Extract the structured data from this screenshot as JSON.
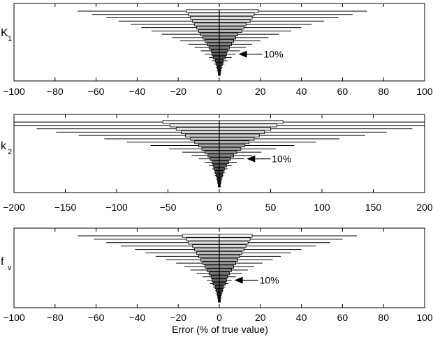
{
  "figure": {
    "xlabel": "Error (% of true value)"
  },
  "chart_data": [
    {
      "type": "bar",
      "panel": "K1",
      "ylabel_main": "K",
      "ylabel_sub": "1",
      "xlim": [
        -100,
        100
      ],
      "xticks": [
        -100,
        -80,
        -60,
        -40,
        -20,
        0,
        20,
        40,
        60,
        80,
        100
      ],
      "grid": false,
      "annotation": "10%",
      "annotation_level_index": 13,
      "levels": [
        {
          "box": [
            -16,
            19
          ],
          "whisker": [
            -69,
            72
          ]
        },
        {
          "box": [
            -15,
            17
          ],
          "whisker": [
            -62,
            65
          ]
        },
        {
          "box": [
            -14,
            16
          ],
          "whisker": [
            -55,
            58
          ]
        },
        {
          "box": [
            -13,
            15
          ],
          "whisker": [
            -49,
            51
          ]
        },
        {
          "box": [
            -12,
            13
          ],
          "whisker": [
            -43,
            45
          ]
        },
        {
          "box": [
            -11,
            12
          ],
          "whisker": [
            -38,
            40
          ]
        },
        {
          "box": [
            -10,
            11
          ],
          "whisker": [
            -33,
            35
          ]
        },
        {
          "box": [
            -9,
            9
          ],
          "whisker": [
            -28,
            29
          ]
        },
        {
          "box": [
            -8,
            8
          ],
          "whisker": [
            -23,
            24
          ]
        },
        {
          "box": [
            -7,
            7
          ],
          "whisker": [
            -19,
            20
          ]
        },
        {
          "box": [
            -6,
            6
          ],
          "whisker": [
            -15,
            16
          ]
        },
        {
          "box": [
            -5,
            5
          ],
          "whisker": [
            -12,
            13
          ]
        },
        {
          "box": [
            -4,
            4
          ],
          "whisker": [
            -9,
            10
          ]
        },
        {
          "box": [
            -3.5,
            3.5
          ],
          "whisker": [
            -7,
            8
          ]
        },
        {
          "box": [
            -3,
            3
          ],
          "whisker": [
            -5,
            6
          ]
        },
        {
          "box": [
            -2,
            2
          ],
          "whisker": [
            -3.5,
            4
          ]
        },
        {
          "box": [
            -1.5,
            1.5
          ],
          "whisker": [
            -2.5,
            2.5
          ]
        },
        {
          "box": [
            -1,
            1
          ],
          "whisker": [
            -1.5,
            1.5
          ]
        },
        {
          "box": [
            -0.7,
            0.7
          ],
          "whisker": [
            -1,
            1
          ]
        },
        {
          "box": [
            -0.5,
            0.5
          ],
          "whisker": [
            -0.7,
            0.7
          ]
        }
      ]
    },
    {
      "type": "bar",
      "panel": "k2",
      "ylabel_main": "k",
      "ylabel_sub": "2",
      "xlim": [
        -200,
        200
      ],
      "xticks": [
        -200,
        -150,
        -100,
        -50,
        0,
        50,
        100,
        150,
        200
      ],
      "grid": false,
      "annotation": "10%",
      "annotation_level_index": 11,
      "levels": [
        {
          "box": [
            -55,
            62
          ],
          "whisker": [
            -200,
            200
          ]
        },
        {
          "box": [
            -48,
            56
          ],
          "whisker": [
            -200,
            200
          ]
        },
        {
          "box": [
            -42,
            50
          ],
          "whisker": [
            -178,
            188
          ]
        },
        {
          "box": [
            -37,
            44
          ],
          "whisker": [
            -159,
            163
          ]
        },
        {
          "box": [
            -33,
            39
          ],
          "whisker": [
            -137,
            142
          ]
        },
        {
          "box": [
            -28,
            34
          ],
          "whisker": [
            -112,
            117
          ]
        },
        {
          "box": [
            -24,
            29
          ],
          "whisker": [
            -90,
            94
          ]
        },
        {
          "box": [
            -20,
            25
          ],
          "whisker": [
            -67,
            73
          ]
        },
        {
          "box": [
            -17,
            21
          ],
          "whisker": [
            -49,
            55
          ]
        },
        {
          "box": [
            -14,
            17
          ],
          "whisker": [
            -36,
            41
          ]
        },
        {
          "box": [
            -11,
            14
          ],
          "whisker": [
            -27,
            32
          ]
        },
        {
          "box": [
            -9,
            11
          ],
          "whisker": [
            -20,
            24
          ]
        },
        {
          "box": [
            -7,
            9
          ],
          "whisker": [
            -14,
            17
          ]
        },
        {
          "box": [
            -6,
            7
          ],
          "whisker": [
            -10,
            12
          ]
        },
        {
          "box": [
            -5,
            5
          ],
          "whisker": [
            -7,
            8
          ]
        },
        {
          "box": [
            -4,
            4
          ],
          "whisker": [
            -5,
            6
          ]
        },
        {
          "box": [
            -3,
            3
          ],
          "whisker": [
            -4,
            4
          ]
        },
        {
          "box": [
            -2,
            2
          ],
          "whisker": [
            -3,
            3
          ]
        },
        {
          "box": [
            -1.5,
            1.5
          ],
          "whisker": [
            -2,
            2
          ]
        },
        {
          "box": [
            -1,
            1
          ],
          "whisker": [
            -1.5,
            1.5
          ]
        }
      ]
    },
    {
      "type": "bar",
      "panel": "fv",
      "ylabel_main": "f",
      "ylabel_sub": "v",
      "xlim": [
        -100,
        100
      ],
      "xticks": [
        -100,
        -80,
        -60,
        -40,
        -20,
        0,
        20,
        40,
        60,
        80,
        100
      ],
      "grid": false,
      "annotation": "10%",
      "annotation_level_index": 13,
      "levels": [
        {
          "box": [
            -18,
            16
          ],
          "whisker": [
            -69,
            67
          ]
        },
        {
          "box": [
            -16,
            15
          ],
          "whisker": [
            -61,
            60
          ]
        },
        {
          "box": [
            -15,
            14
          ],
          "whisker": [
            -55,
            54
          ]
        },
        {
          "box": [
            -13,
            13
          ],
          "whisker": [
            -48,
            47
          ]
        },
        {
          "box": [
            -12,
            12
          ],
          "whisker": [
            -41,
            40
          ]
        },
        {
          "box": [
            -11,
            11
          ],
          "whisker": [
            -36,
            35
          ]
        },
        {
          "box": [
            -10,
            10
          ],
          "whisker": [
            -31,
            30
          ]
        },
        {
          "box": [
            -9,
            9
          ],
          "whisker": [
            -26,
            26
          ]
        },
        {
          "box": [
            -8,
            8
          ],
          "whisker": [
            -21,
            21
          ]
        },
        {
          "box": [
            -7,
            7
          ],
          "whisker": [
            -17,
            17
          ]
        },
        {
          "box": [
            -6,
            6
          ],
          "whisker": [
            -14,
            14
          ]
        },
        {
          "box": [
            -5,
            5
          ],
          "whisker": [
            -11,
            11
          ]
        },
        {
          "box": [
            -4,
            4
          ],
          "whisker": [
            -8,
            8
          ]
        },
        {
          "box": [
            -3.5,
            3.5
          ],
          "whisker": [
            -6,
            6
          ]
        },
        {
          "box": [
            -3,
            3
          ],
          "whisker": [
            -4.5,
            4.5
          ]
        },
        {
          "box": [
            -2,
            2
          ],
          "whisker": [
            -3,
            3
          ]
        },
        {
          "box": [
            -1.5,
            1.5
          ],
          "whisker": [
            -2,
            2
          ]
        },
        {
          "box": [
            -1,
            1
          ],
          "whisker": [
            -1.5,
            1.5
          ]
        },
        {
          "box": [
            -0.7,
            0.7
          ],
          "whisker": [
            -1,
            1
          ]
        },
        {
          "box": [
            -0.5,
            0.5
          ],
          "whisker": [
            -0.7,
            0.7
          ]
        }
      ]
    }
  ]
}
